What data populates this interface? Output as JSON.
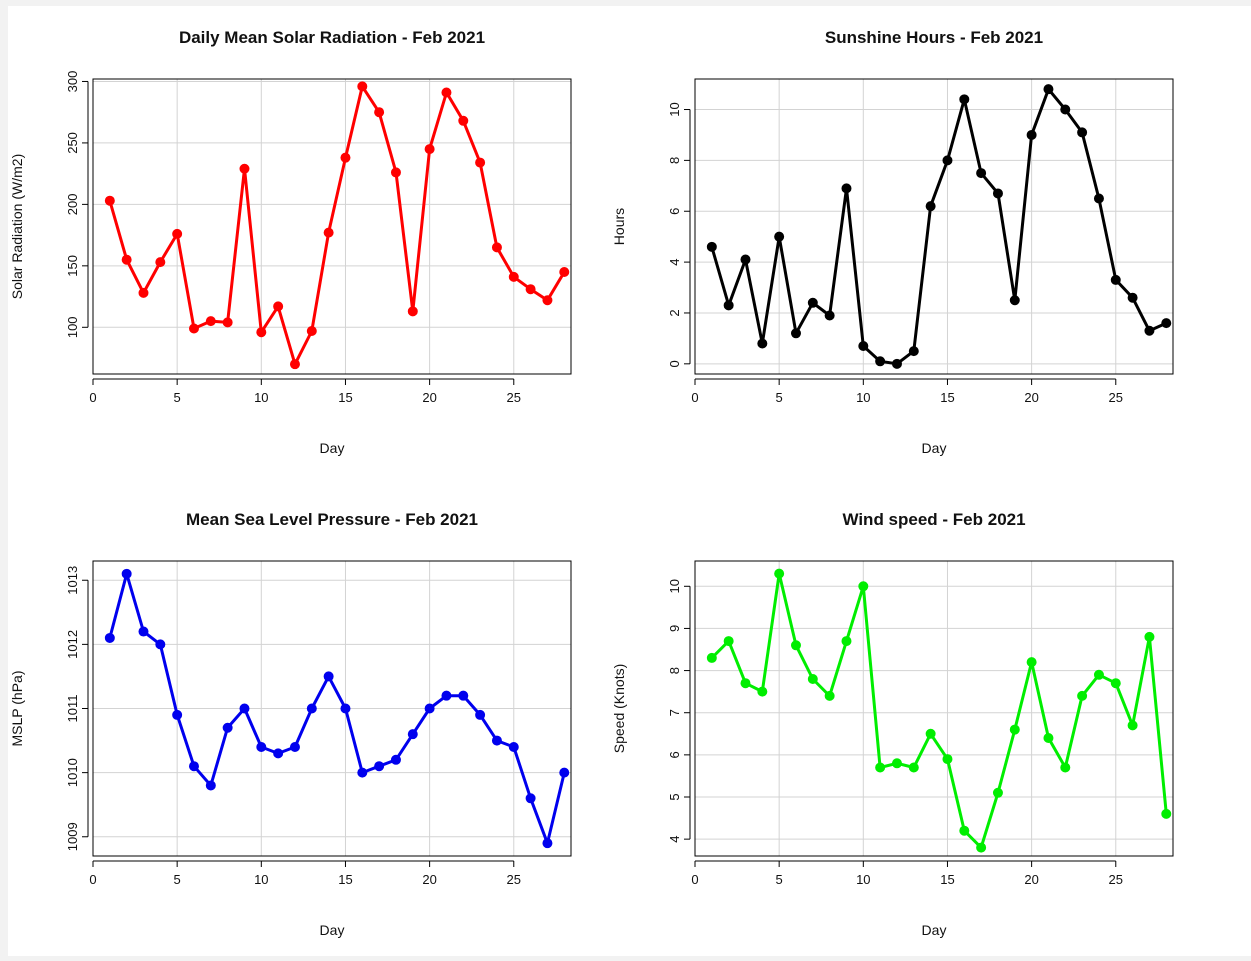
{
  "chart_data": [
    {
      "type": "line",
      "title": "Daily Mean Solar Radiation - Feb 2021",
      "xlabel": "Day",
      "ylabel": "Solar Radiation (W/m2)",
      "xlim": [
        0,
        28.4
      ],
      "ylim": [
        62,
        302
      ],
      "xticks": [
        0,
        5,
        10,
        15,
        20,
        25
      ],
      "yticks": [
        100,
        150,
        200,
        250,
        300
      ],
      "grid": true,
      "color": "#ff0000",
      "x": [
        1,
        2,
        3,
        4,
        5,
        6,
        7,
        8,
        9,
        10,
        11,
        12,
        13,
        14,
        15,
        16,
        17,
        18,
        19,
        20,
        21,
        22,
        23,
        24,
        25,
        26,
        27,
        28
      ],
      "y": [
        203,
        155,
        128,
        153,
        176,
        99,
        105,
        104,
        229,
        96,
        117,
        70,
        97,
        177,
        238,
        296,
        275,
        226,
        113,
        245,
        291,
        268,
        234,
        165,
        141,
        131,
        122,
        145
      ]
    },
    {
      "type": "line",
      "title": "Sunshine Hours - Feb 2021",
      "xlabel": "Day",
      "ylabel": "Hours",
      "xlim": [
        0,
        28.4
      ],
      "ylim": [
        -0.4,
        11.2
      ],
      "xticks": [
        0,
        5,
        10,
        15,
        20,
        25
      ],
      "yticks": [
        0,
        2,
        4,
        6,
        8,
        10
      ],
      "grid": true,
      "color": "#000000",
      "x": [
        1,
        2,
        3,
        4,
        5,
        6,
        7,
        8,
        9,
        10,
        11,
        12,
        13,
        14,
        15,
        16,
        17,
        18,
        19,
        20,
        21,
        22,
        23,
        24,
        25,
        26,
        27,
        28
      ],
      "y": [
        4.6,
        2.3,
        4.1,
        0.8,
        5.0,
        1.2,
        2.4,
        1.9,
        6.9,
        0.7,
        0.1,
        0.0,
        0.5,
        6.2,
        8.0,
        10.4,
        7.5,
        6.7,
        2.5,
        9.0,
        10.8,
        10.0,
        9.1,
        6.5,
        3.3,
        2.6,
        1.3,
        1.6
      ]
    },
    {
      "type": "line",
      "title": "Mean Sea Level Pressure - Feb 2021",
      "xlabel": "Day",
      "ylabel": "MSLP (hPa)",
      "xlim": [
        0,
        28.4
      ],
      "ylim": [
        1008.7,
        1013.3
      ],
      "xticks": [
        0,
        5,
        10,
        15,
        20,
        25
      ],
      "yticks": [
        1009,
        1010,
        1011,
        1012,
        1013
      ],
      "grid": true,
      "color": "#0000ee",
      "x": [
        1,
        2,
        3,
        4,
        5,
        6,
        7,
        8,
        9,
        10,
        11,
        12,
        13,
        14,
        15,
        16,
        17,
        18,
        19,
        20,
        21,
        22,
        23,
        24,
        25,
        26,
        27,
        28
      ],
      "y": [
        1012.1,
        1013.1,
        1012.2,
        1012.0,
        1010.9,
        1010.1,
        1009.8,
        1010.7,
        1011.0,
        1010.4,
        1010.3,
        1010.4,
        1011.0,
        1011.5,
        1011.0,
        1010.0,
        1010.1,
        1010.2,
        1010.6,
        1011.0,
        1011.2,
        1011.2,
        1010.9,
        1010.5,
        1010.4,
        1009.6,
        1008.9,
        1010.0
      ]
    },
    {
      "type": "line",
      "title": "Wind speed - Feb 2021",
      "xlabel": "Day",
      "ylabel": "Speed (Knots)",
      "xlim": [
        0,
        28.4
      ],
      "ylim": [
        3.6,
        10.6
      ],
      "xticks": [
        0,
        5,
        10,
        15,
        20,
        25
      ],
      "yticks": [
        4,
        5,
        6,
        7,
        8,
        9,
        10
      ],
      "grid": true,
      "color": "#00ee00",
      "x": [
        1,
        2,
        3,
        4,
        5,
        6,
        7,
        8,
        9,
        10,
        11,
        12,
        13,
        14,
        15,
        16,
        17,
        18,
        19,
        20,
        21,
        22,
        23,
        24,
        25,
        26,
        27,
        28
      ],
      "y": [
        8.3,
        8.7,
        7.7,
        7.5,
        10.3,
        8.6,
        7.8,
        7.4,
        8.7,
        10.0,
        5.7,
        5.8,
        5.7,
        6.5,
        5.9,
        4.2,
        3.8,
        5.1,
        6.6,
        8.2,
        6.4,
        5.7,
        7.4,
        7.9,
        7.7,
        6.7,
        8.8,
        4.6
      ]
    }
  ]
}
